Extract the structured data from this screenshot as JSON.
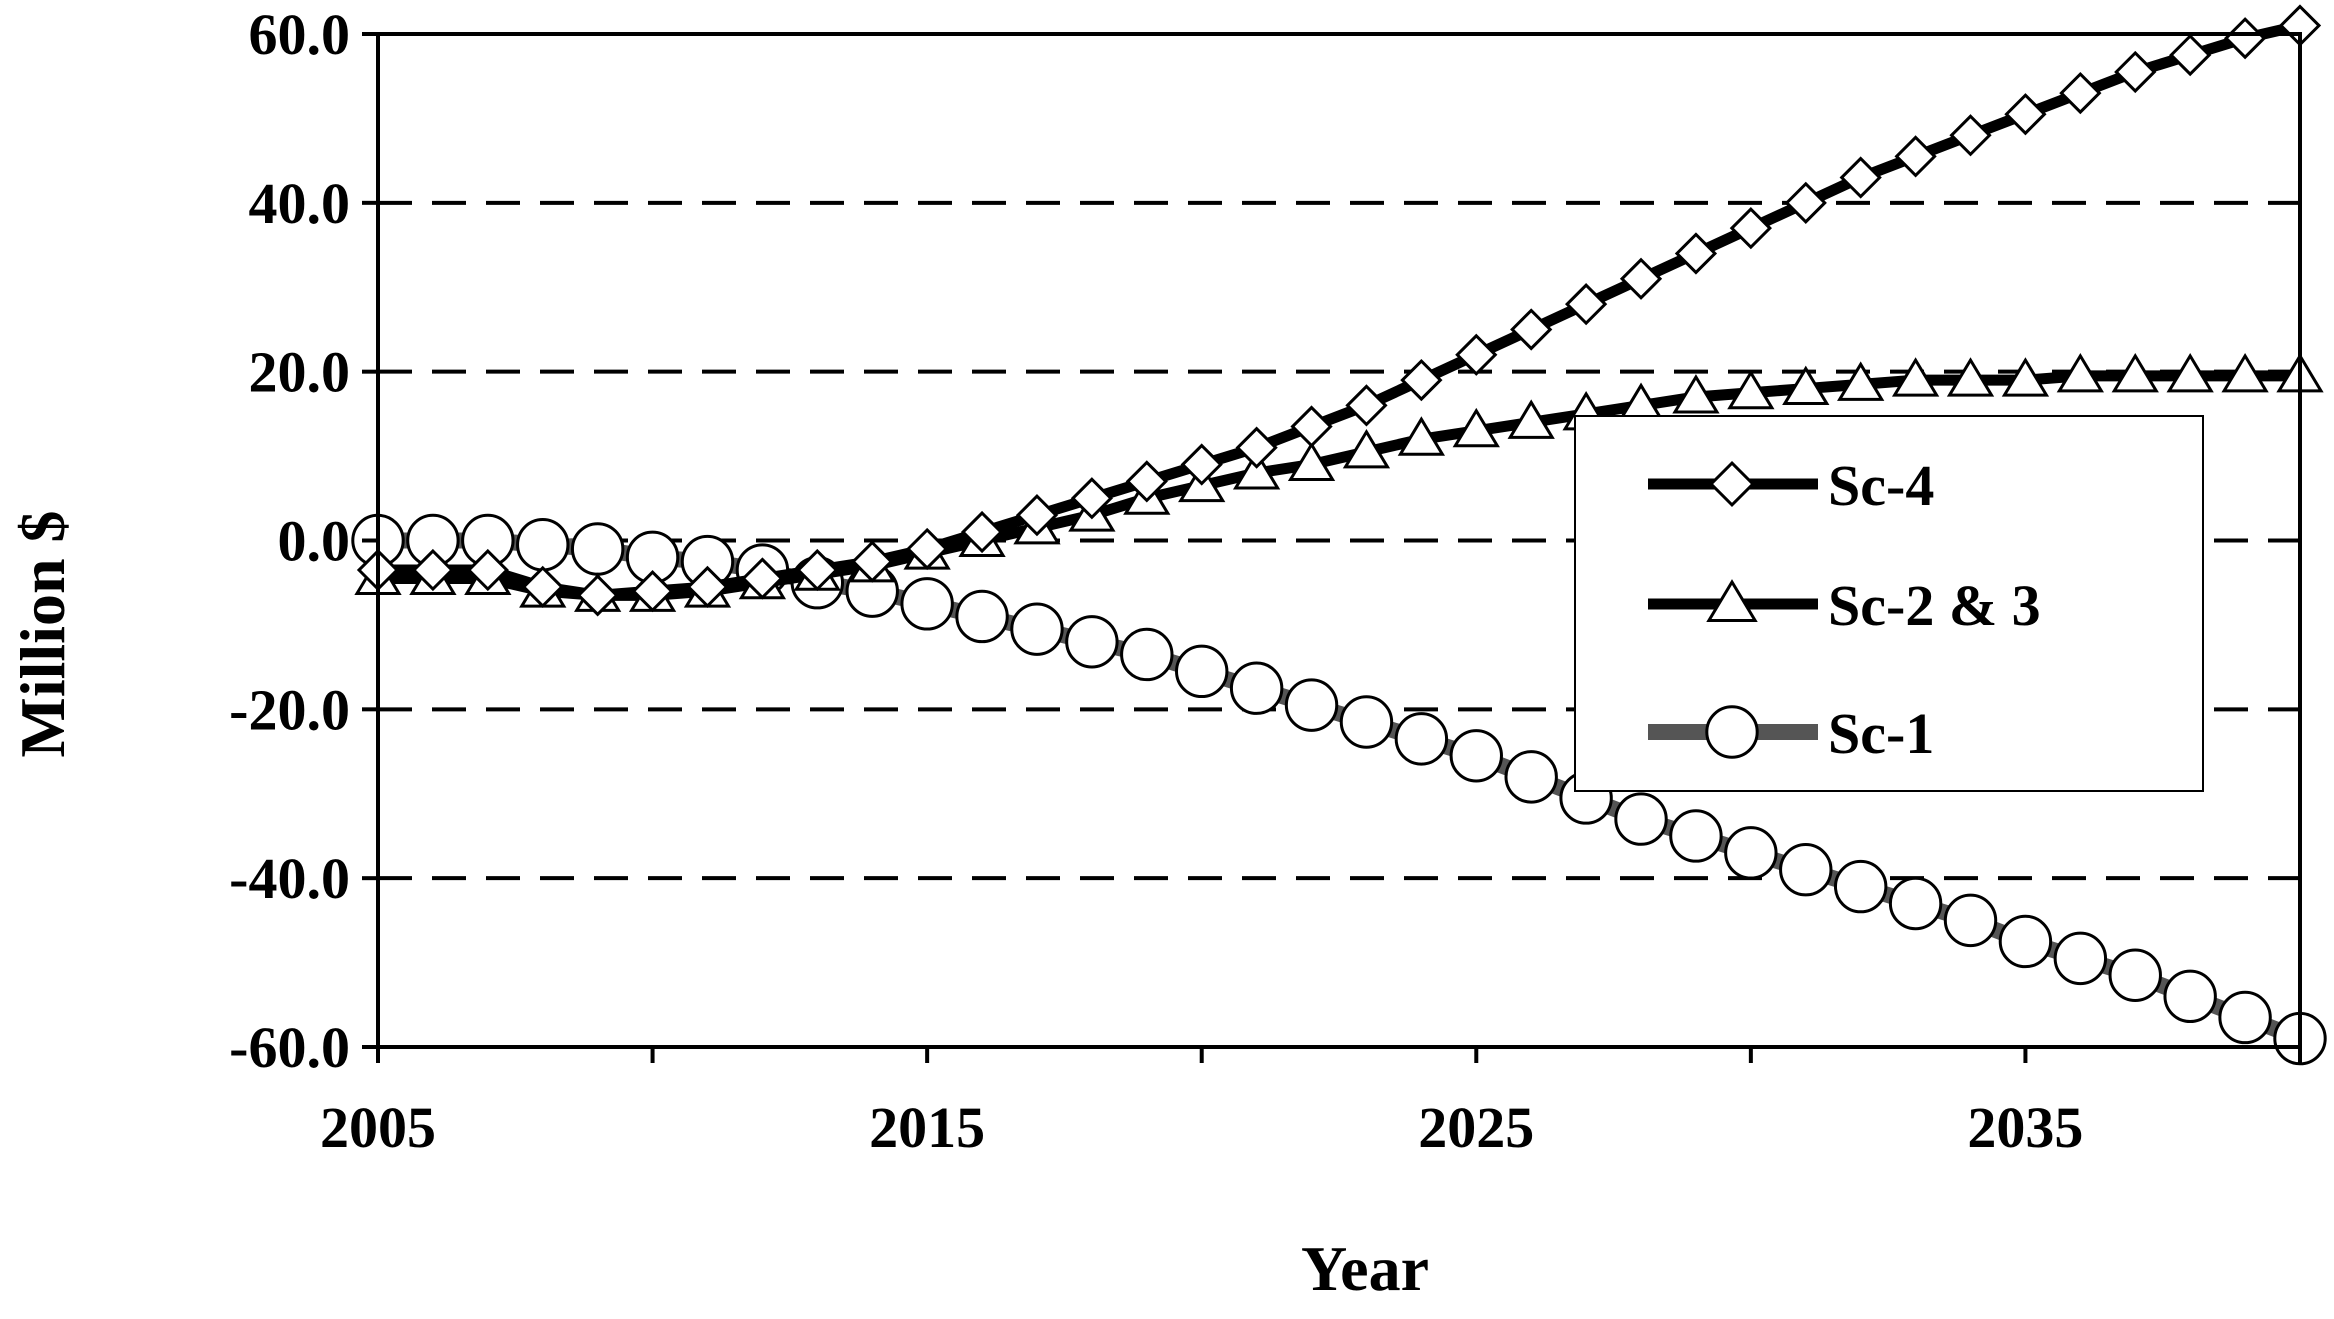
{
  "chart_data": {
    "type": "line",
    "title": "",
    "xlabel": "Year",
    "ylabel": "Million $",
    "xlim": [
      2005,
      2040
    ],
    "ylim": [
      -60,
      60
    ],
    "x_ticks": [
      "2005",
      "2015",
      "2025",
      "2035"
    ],
    "y_ticks": [
      "60.0",
      "40.0",
      "20.0",
      "0.0",
      "-20.0",
      "-40.0",
      "-60.0"
    ],
    "grid": "horizontal dashed",
    "legend_position": "right-center",
    "x": [
      2005,
      2006,
      2007,
      2008,
      2009,
      2010,
      2011,
      2012,
      2013,
      2014,
      2015,
      2016,
      2017,
      2018,
      2019,
      2020,
      2021,
      2022,
      2023,
      2024,
      2025,
      2026,
      2027,
      2028,
      2029,
      2030,
      2031,
      2032,
      2033,
      2034,
      2035,
      2036,
      2037,
      2038,
      2039,
      2040
    ],
    "series": [
      {
        "name": "Sc-4",
        "marker": "diamond",
        "color": "#000000",
        "values": [
          -3.5,
          -3.5,
          -3.5,
          -5.5,
          -6.5,
          -6.0,
          -5.5,
          -4.5,
          -3.5,
          -2.5,
          -1.0,
          1.0,
          3.0,
          5.0,
          7.0,
          9.0,
          11.0,
          13.5,
          16.0,
          19.0,
          22.0,
          25.0,
          28.0,
          31.0,
          34.0,
          37.0,
          40.0,
          43.0,
          45.5,
          48.0,
          50.5,
          53.0,
          55.5,
          57.5,
          59.5,
          61.0
        ]
      },
      {
        "name": "Sc-2 & 3",
        "marker": "triangle",
        "color": "#000000",
        "values": [
          -4.5,
          -4.5,
          -4.5,
          -6.0,
          -6.5,
          -6.5,
          -6.0,
          -5.0,
          -4.0,
          -3.0,
          -1.5,
          0.0,
          1.5,
          3.0,
          5.0,
          6.5,
          8.0,
          9.0,
          10.5,
          12.0,
          13.0,
          14.0,
          15.0,
          16.0,
          17.0,
          17.5,
          18.0,
          18.5,
          19.0,
          19.0,
          19.0,
          19.5,
          19.5,
          19.5,
          19.5,
          19.5
        ]
      },
      {
        "name": "Sc-1",
        "marker": "circle",
        "color": "#555555",
        "values": [
          0.0,
          0.0,
          0.0,
          -0.5,
          -1.0,
          -2.0,
          -2.5,
          -3.5,
          -5.0,
          -6.0,
          -7.5,
          -9.0,
          -10.5,
          -12.0,
          -13.5,
          -15.5,
          -17.5,
          -19.5,
          -21.5,
          -23.5,
          -25.5,
          -28.0,
          -30.5,
          -33.0,
          -35.0,
          -37.0,
          -39.0,
          -41.0,
          -43.0,
          -45.0,
          -47.5,
          -49.5,
          -51.5,
          -54.0,
          -56.5,
          -59.0
        ]
      }
    ]
  }
}
